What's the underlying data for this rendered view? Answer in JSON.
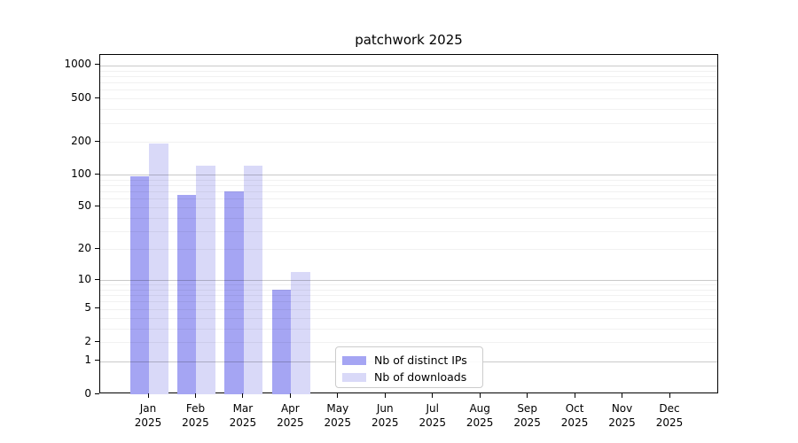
{
  "chart_data": {
    "type": "bar",
    "title": "patchwork 2025",
    "xlabel": "",
    "ylabel": "",
    "x_year": "2025",
    "categories": [
      "Jan",
      "Feb",
      "Mar",
      "Apr",
      "May",
      "Jun",
      "Jul",
      "Aug",
      "Sep",
      "Oct",
      "Nov",
      "Dec"
    ],
    "series": [
      {
        "name": "Nb of distinct IPs",
        "color": "#a5a5f3",
        "values": [
          97,
          65,
          70,
          8,
          null,
          null,
          null,
          null,
          null,
          null,
          null,
          null
        ]
      },
      {
        "name": "Nb of downloads",
        "color": "#d9d9f8",
        "values": [
          195,
          120,
          122,
          12,
          null,
          null,
          null,
          null,
          null,
          null,
          null,
          null
        ]
      }
    ],
    "yscale": "log1p",
    "ylim": [
      0,
      1250
    ],
    "yticks": [
      1000,
      500,
      200,
      100,
      50,
      20,
      10,
      5,
      2,
      1,
      0
    ],
    "grid": {
      "major_lines": [
        1000,
        100,
        10,
        1
      ],
      "minor_lines": [
        900,
        800,
        700,
        600,
        500,
        400,
        300,
        200,
        90,
        80,
        70,
        60,
        50,
        40,
        30,
        20,
        9,
        8,
        7,
        6,
        5,
        4,
        3,
        2
      ],
      "on": true
    },
    "legend": {
      "position": "lower center-right"
    },
    "colors": {
      "spine": "#000000",
      "background": "#ffffff"
    }
  }
}
